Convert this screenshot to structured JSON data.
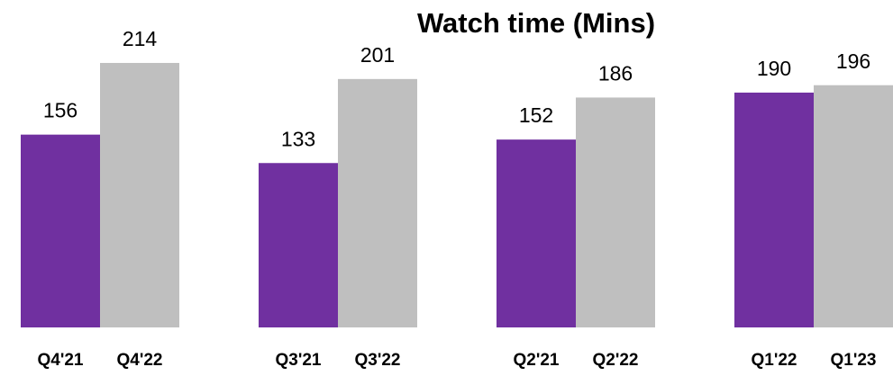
{
  "chart_data": {
    "type": "bar",
    "title": "Watch time (Mins)",
    "categories": [
      "Q4'21",
      "Q4'22",
      "Q3'21",
      "Q3'22",
      "Q2'21",
      "Q2'22",
      "Q1'22",
      "Q1'23"
    ],
    "values": [
      156,
      214,
      133,
      201,
      152,
      186,
      190,
      196
    ],
    "colors": [
      "#7030a0",
      "#bfbfbf",
      "#7030a0",
      "#bfbfbf",
      "#7030a0",
      "#bfbfbf",
      "#7030a0",
      "#bfbfbf"
    ]
  }
}
